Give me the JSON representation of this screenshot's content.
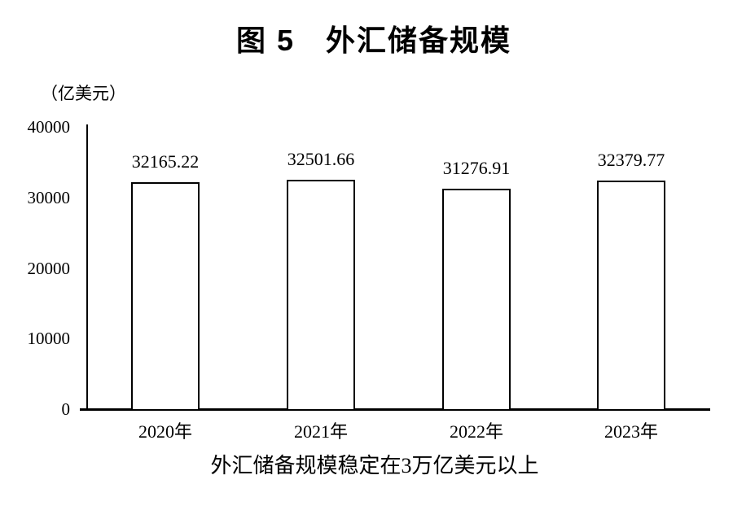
{
  "figure": {
    "title": "图 5　外汇储备规模",
    "unit_label": "（亿美元）",
    "caption": "外汇储备规模稳定在3万亿美元以上"
  },
  "chart_data": {
    "type": "bar",
    "title": "图 5 外汇储备规模",
    "categories": [
      "2020年",
      "2021年",
      "2022年",
      "2023年"
    ],
    "values": [
      32165.22,
      32501.66,
      31276.91,
      32379.77
    ],
    "value_labels": [
      "32165.22",
      "32501.66",
      "31276.91",
      "32379.77"
    ],
    "xlabel": "",
    "ylabel": "（亿美元）",
    "yticks": [
      0,
      10000,
      20000,
      30000,
      40000
    ],
    "ylim": [
      0,
      40000
    ],
    "grid": false,
    "legend": false,
    "caption": "外汇储备规模稳定在3万亿美元以上",
    "colors": {
      "bar_fill": "#ffffff",
      "bar_border": "#000000",
      "axis": "#000000",
      "text": "#000000",
      "background": "#ffffff"
    }
  }
}
